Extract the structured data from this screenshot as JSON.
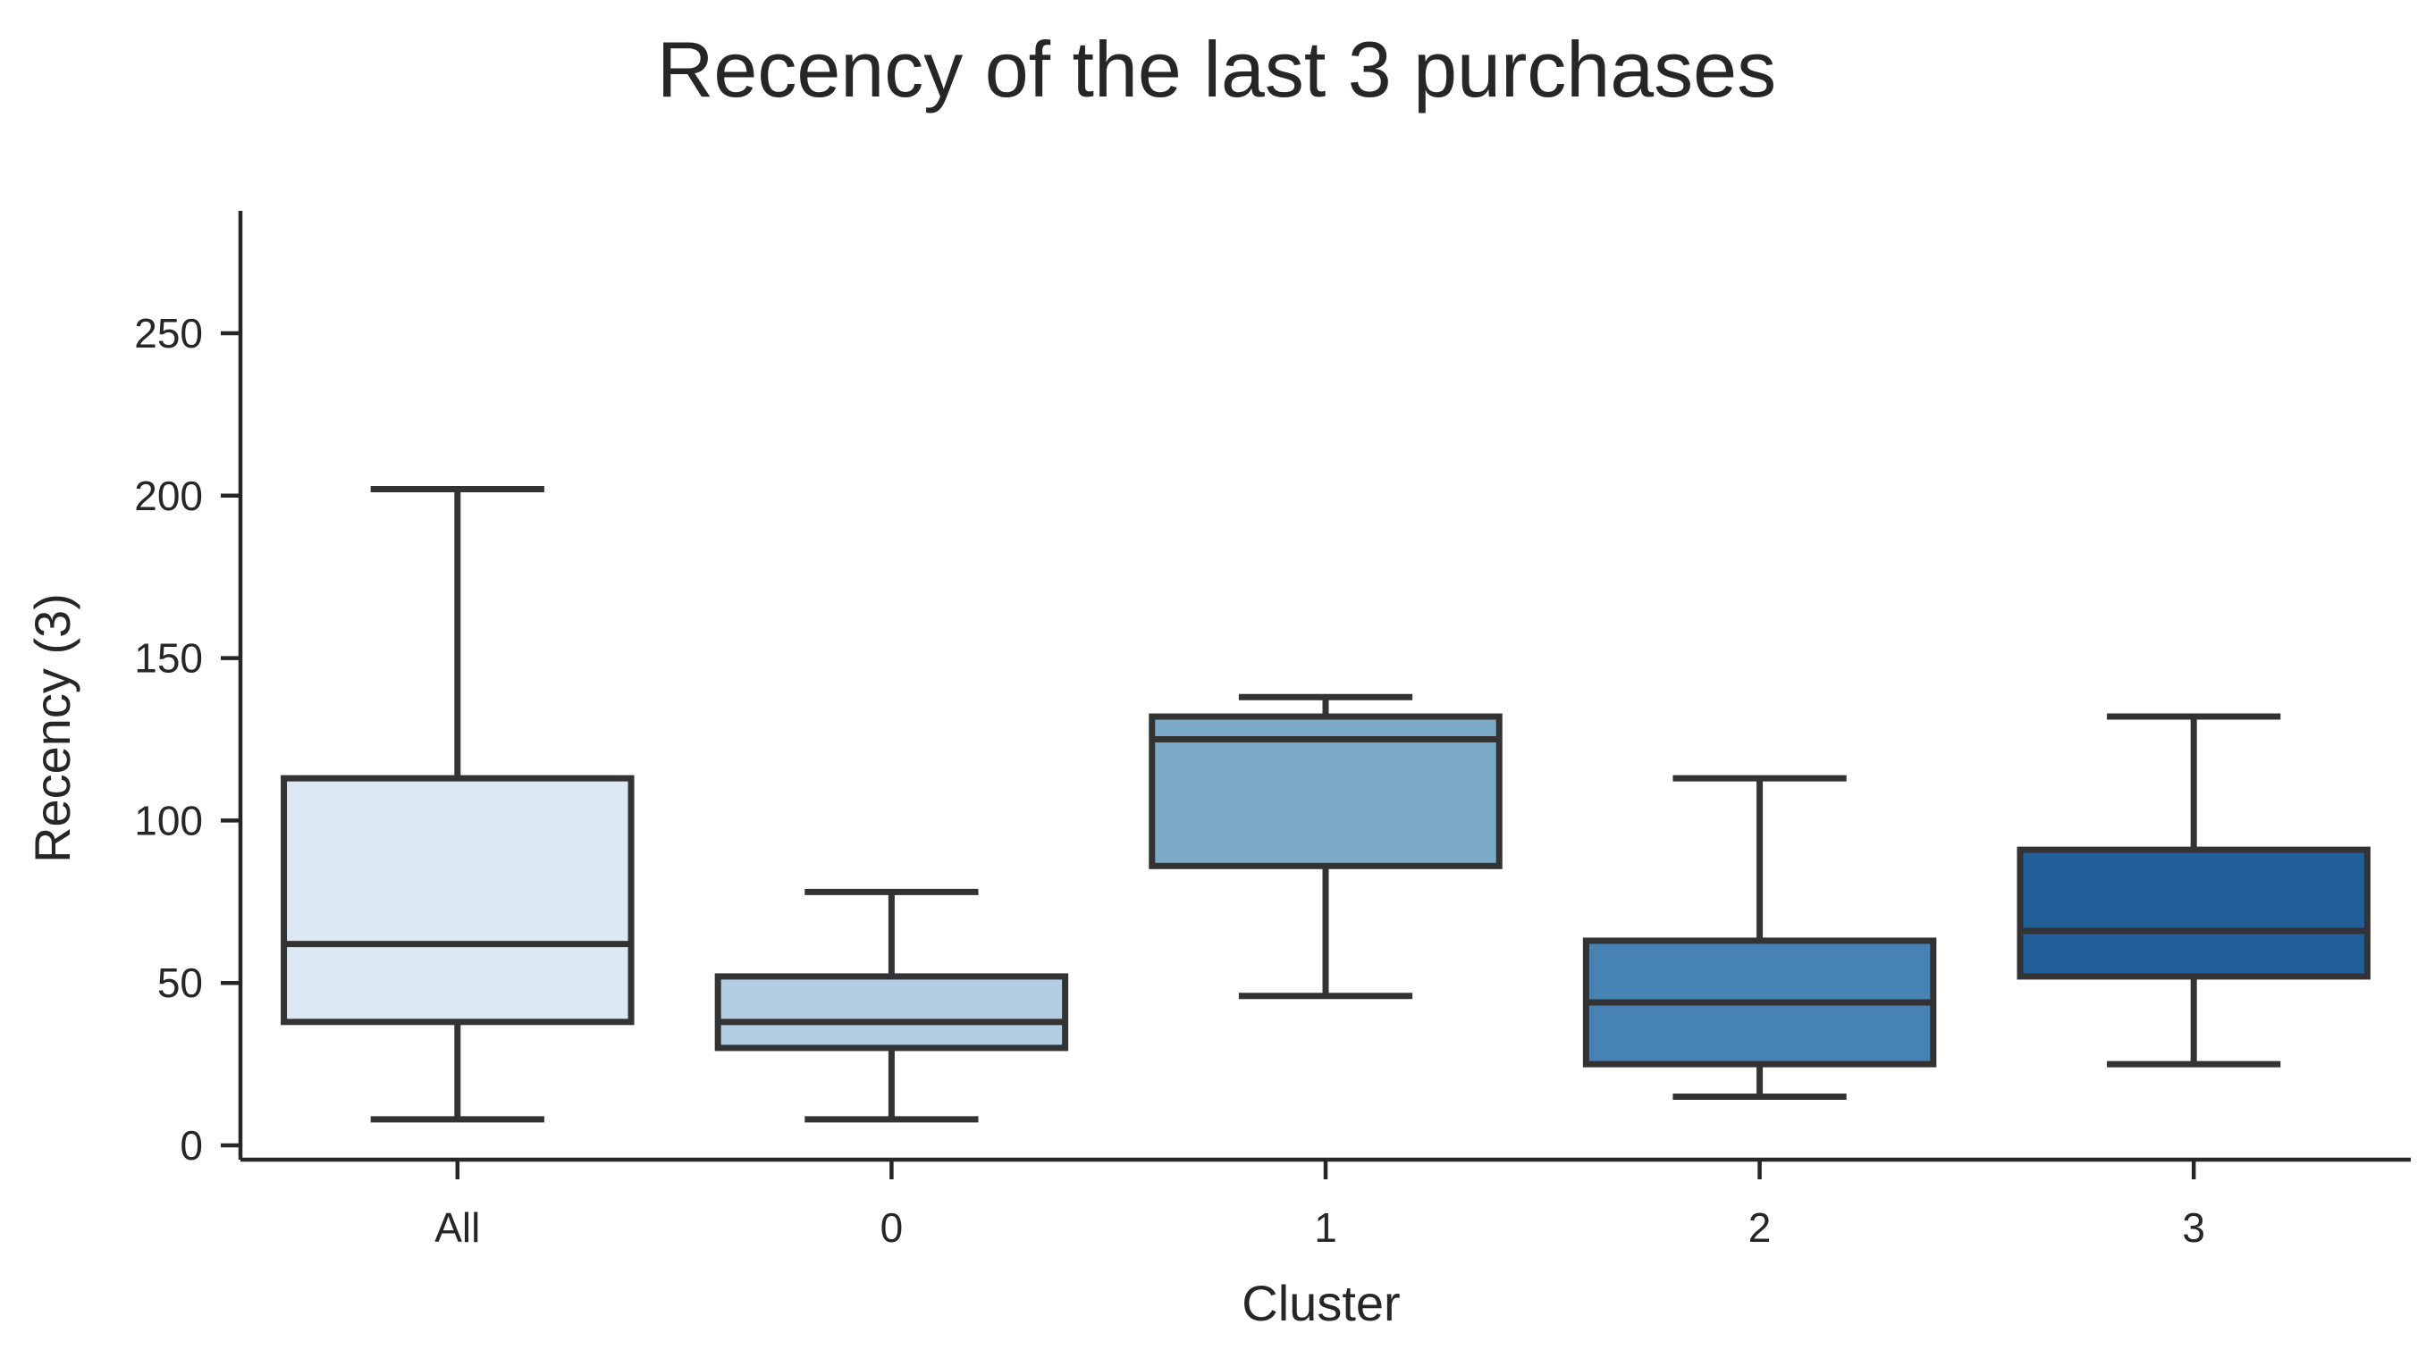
{
  "chart_data": {
    "type": "box",
    "title": "Recency of the last 3 purchases",
    "xlabel": "Cluster",
    "ylabel": "Recency (3)",
    "categories": [
      "All",
      "0",
      "1",
      "2",
      "3"
    ],
    "boxes": [
      {
        "category": "All",
        "whisker_low": 8,
        "q1": 38,
        "median": 62,
        "q3": 113,
        "whisker_high": 202,
        "color": "#dbe8f4"
      },
      {
        "category": "0",
        "whisker_low": 8,
        "q1": 30,
        "median": 38,
        "q3": 52,
        "whisker_high": 78,
        "color": "#b3cde3"
      },
      {
        "category": "1",
        "whisker_low": 46,
        "q1": 86,
        "median": 125,
        "q3": 132,
        "whisker_high": 138,
        "color": "#7aaac8"
      },
      {
        "category": "2",
        "whisker_low": 15,
        "q1": 25,
        "median": 44,
        "q3": 63,
        "whisker_high": 113,
        "color": "#4682b4"
      },
      {
        "category": "3",
        "whisker_low": 25,
        "q1": 52,
        "median": 66,
        "q3": 91,
        "whisker_high": 132,
        "color": "#225e98"
      }
    ],
    "yticks": [
      0,
      50,
      100,
      150,
      200,
      250
    ],
    "ylim": [
      -4,
      288
    ],
    "grid": false,
    "legend": "none"
  }
}
